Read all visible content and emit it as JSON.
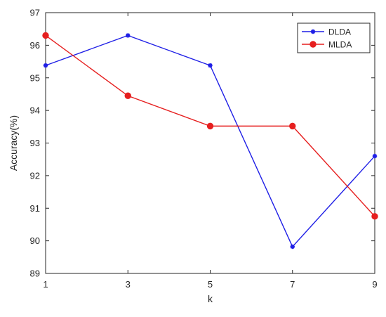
{
  "chart_data": {
    "type": "line",
    "title": "",
    "xlabel": "k",
    "ylabel": "Accuracy(%)",
    "x": [
      1,
      3,
      5,
      7,
      9
    ],
    "xlim": [
      1,
      9
    ],
    "ylim": [
      89,
      97
    ],
    "xticks": [
      "1",
      "3",
      "5",
      "7",
      "9"
    ],
    "yticks": [
      "89",
      "90",
      "91",
      "92",
      "93",
      "94",
      "95",
      "96",
      "97"
    ],
    "grid": false,
    "legend_position": "top-right",
    "series": [
      {
        "name": "DLDA",
        "values": [
          95.38,
          96.3,
          95.38,
          89.82,
          92.6
        ],
        "color": "#1f1fe6",
        "marker": "asterisk"
      },
      {
        "name": "MLDA",
        "values": [
          96.3,
          94.45,
          93.52,
          93.52,
          90.75
        ],
        "color": "#e61f1f",
        "marker": "circle"
      }
    ]
  }
}
